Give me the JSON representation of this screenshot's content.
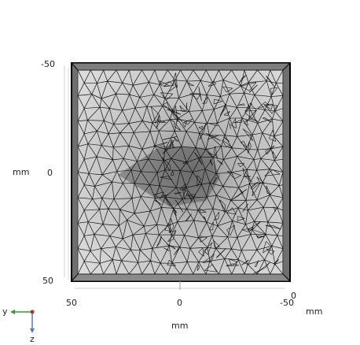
{
  "axes": {
    "vertical": {
      "ticks": [
        "-50",
        "0",
        "50"
      ],
      "unit": "mm"
    },
    "horizontal": {
      "ticks": [
        "50",
        "0",
        "-50"
      ],
      "unit": "mm"
    },
    "depth_tick": "0",
    "depth_unit": "mm"
  },
  "triad": {
    "horizontal_label": "y",
    "vertical_label": "z"
  },
  "colors": {
    "frame": "#6f6f6f",
    "frame_edge": "#000000",
    "inner_fill": "#d9d9d9",
    "mesh": "#111111",
    "y_axis": "#3a9a3a",
    "z_axis": "#4f7fb5",
    "x_dot": "#b03030"
  }
}
